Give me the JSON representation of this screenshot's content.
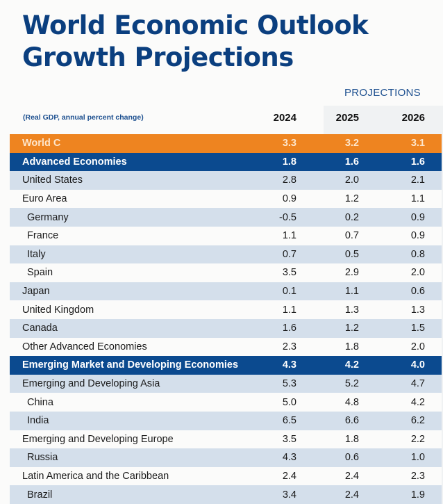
{
  "title": [
    "World Economic Outlook",
    "Growth Projections"
  ],
  "projections_label": "PROJECTIONS",
  "unit_label": "(Real GDP, annual percent change)",
  "years": [
    "2024",
    "2025",
    "2026"
  ],
  "rows": [
    {
      "name": "World C",
      "values": [
        "3.3",
        "3.2",
        "3.1"
      ],
      "style": "orange"
    },
    {
      "name": "Advanced Economies",
      "values": [
        "1.8",
        "1.6",
        "1.6"
      ],
      "style": "dark"
    },
    {
      "name": "United States",
      "values": [
        "2.8",
        "2.0",
        "2.1"
      ],
      "style": "light"
    },
    {
      "name": "Euro Area",
      "values": [
        "0.9",
        "1.2",
        "1.1"
      ],
      "style": "white"
    },
    {
      "name": "Germany",
      "values": [
        "-0.5",
        "0.2",
        "0.9"
      ],
      "style": "light",
      "sub": true
    },
    {
      "name": "France",
      "values": [
        "1.1",
        "0.7",
        "0.9"
      ],
      "style": "white",
      "sub": true
    },
    {
      "name": "Italy",
      "values": [
        "0.7",
        "0.5",
        "0.8"
      ],
      "style": "light",
      "sub": true
    },
    {
      "name": "Spain",
      "values": [
        "3.5",
        "2.9",
        "2.0"
      ],
      "style": "white",
      "sub": true
    },
    {
      "name": "Japan",
      "values": [
        "0.1",
        "1.1",
        "0.6"
      ],
      "style": "light"
    },
    {
      "name": "United Kingdom",
      "values": [
        "1.1",
        "1.3",
        "1.3"
      ],
      "style": "white"
    },
    {
      "name": "Canada",
      "values": [
        "1.6",
        "1.2",
        "1.5"
      ],
      "style": "light"
    },
    {
      "name": "Other Advanced Economies",
      "values": [
        "2.3",
        "1.8",
        "2.0"
      ],
      "style": "white"
    },
    {
      "name": "Emerging Market and Developing Economies",
      "values": [
        "4.3",
        "4.2",
        "4.0"
      ],
      "style": "dark"
    },
    {
      "name": "Emerging and Developing Asia",
      "values": [
        "5.3",
        "5.2",
        "4.7"
      ],
      "style": "light"
    },
    {
      "name": "China",
      "values": [
        "5.0",
        "4.8",
        "4.2"
      ],
      "style": "white",
      "sub": true
    },
    {
      "name": "India",
      "values": [
        "6.5",
        "6.6",
        "6.2"
      ],
      "style": "light",
      "sub": true
    },
    {
      "name": "Emerging and Developing Europe",
      "values": [
        "3.5",
        "1.8",
        "2.2"
      ],
      "style": "white"
    },
    {
      "name": "Russia",
      "values": [
        "4.3",
        "0.6",
        "1.0"
      ],
      "style": "light",
      "sub": true
    },
    {
      "name": "Latin America and the Caribbean",
      "values": [
        "2.4",
        "2.4",
        "2.3"
      ],
      "style": "white"
    },
    {
      "name": "Brazil",
      "values": [
        "3.4",
        "2.4",
        "1.9"
      ],
      "style": "light",
      "sub": true
    }
  ],
  "colors": {
    "title": "#0b3f7f",
    "orange": "#ee8420",
    "dark_blue": "#0b4a8f",
    "light_row": "#d4dfeb"
  }
}
